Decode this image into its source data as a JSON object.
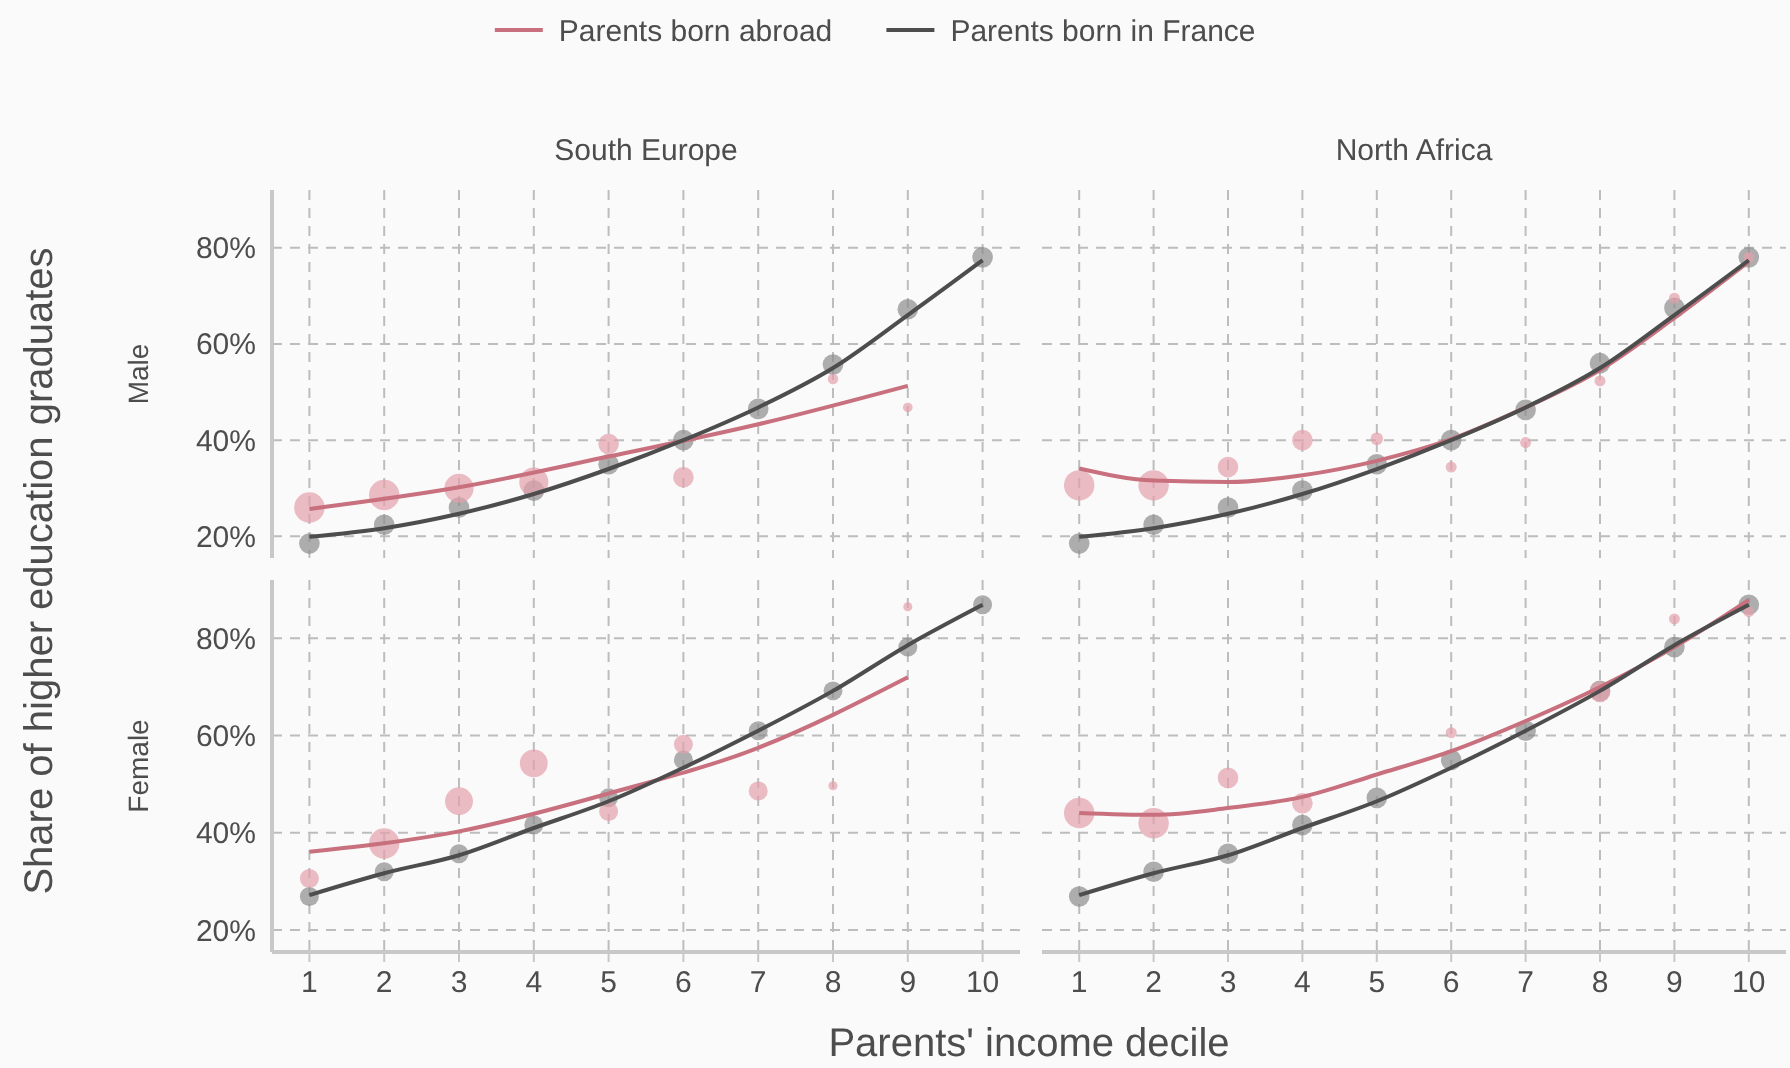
{
  "chart_data": [
    {
      "type": "bubble",
      "title": "South Europe",
      "ylabel": "Male",
      "annotations": [
        "Share of higher education graduates"
      ],
      "legend": "top",
      "grid": true,
      "tick_labels": "y",
      "xlim": [
        0.5,
        10.5
      ],
      "ylim": [
        15.5,
        92
      ],
      "xticks": [
        1,
        2,
        3,
        4,
        5,
        6,
        7,
        8,
        9,
        10
      ],
      "yticks": [
        {
          "value": 20,
          "label": "20%"
        },
        {
          "value": 40,
          "label": "40%"
        },
        {
          "value": 60,
          "label": "60%"
        },
        {
          "value": 80,
          "label": "80%"
        }
      ],
      "series": [
        {
          "marker": "circle",
          "color": "#8c8c8c",
          "x": [
            1,
            2,
            3,
            4,
            5,
            6,
            7,
            8,
            9,
            10
          ],
          "values": [
            18.5,
            22.4,
            26,
            29.5,
            35,
            40,
            46.5,
            55.7,
            67.2,
            78
          ],
          "sizes": [
            0.46,
            0.46,
            0.46,
            0.46,
            0.46,
            0.46,
            0.46,
            0.46,
            0.46,
            0.46
          ]
        },
        {
          "marker": "circle",
          "color": "#e3a0ab",
          "x": [
            1,
            2,
            3,
            4,
            5,
            6,
            8,
            9
          ],
          "values": [
            26,
            28.6,
            30,
            31.3,
            39.2,
            32.3,
            52.7,
            46.8
          ],
          "sizes": [
            1,
            1,
            0.92,
            0.92,
            0.46,
            0.46,
            0.12,
            0.1
          ]
        },
        {
          "type": "line",
          "marker": "none",
          "name": "Parents born abroad",
          "color": "#c8707e",
          "x": [
            1,
            3,
            5,
            7,
            9
          ],
          "values": [
            25.7,
            30.2,
            36.6,
            43.3,
            51.3
          ]
        },
        {
          "type": "line",
          "marker": "none",
          "name": "Parents born in France",
          "color": "#4d4d4d",
          "x": [
            1,
            2,
            3,
            4,
            5,
            6,
            7,
            8,
            9,
            10
          ],
          "values": [
            19.9,
            21.7,
            24.7,
            28.8,
            34,
            40,
            46.8,
            55,
            66,
            77.4
          ]
        }
      ]
    },
    {
      "type": "bubble",
      "title": "North Africa",
      "grid": true,
      "tick_labels": false,
      "xlim": [
        0.5,
        10.5
      ],
      "ylim": [
        15.5,
        92
      ],
      "xticks": [
        1,
        2,
        3,
        4,
        5,
        6,
        7,
        8,
        9,
        10
      ],
      "yticks": [
        {
          "value": 20,
          "label": null
        },
        {
          "value": 40,
          "label": null
        },
        {
          "value": 60,
          "label": null
        },
        {
          "value": 80,
          "label": null
        }
      ],
      "series": [
        {
          "marker": "circle",
          "color": "#8c8c8c",
          "x": [
            1,
            2,
            3,
            4,
            5,
            6,
            7,
            8,
            9,
            10
          ],
          "values": [
            18.5,
            22.4,
            26,
            29.5,
            35,
            40,
            46.3,
            56,
            67.5,
            78
          ],
          "sizes": [
            0.46,
            0.46,
            0.46,
            0.46,
            0.46,
            0.46,
            0.46,
            0.46,
            0.46,
            0.46
          ]
        },
        {
          "marker": "circle",
          "color": "#e3a0ab",
          "x": [
            1,
            2,
            3,
            4,
            5,
            6,
            7,
            8,
            9,
            10
          ],
          "values": [
            30.6,
            30.6,
            34.4,
            40,
            40.3,
            34.4,
            39.5,
            52.3,
            69.5,
            78
          ],
          "sizes": [
            1,
            1,
            0.46,
            0.46,
            0.17,
            0.13,
            0.13,
            0.13,
            0.13,
            0.13
          ]
        },
        {
          "type": "line",
          "marker": "none",
          "color": "#c8707e",
          "x": [
            1,
            2,
            3,
            4,
            5,
            6,
            7,
            8,
            9,
            10
          ],
          "values": [
            34.1,
            31.6,
            31.3,
            32.7,
            35.7,
            40.2,
            46.8,
            54.6,
            65.4,
            77.1
          ]
        },
        {
          "type": "line",
          "marker": "none",
          "color": "#4d4d4d",
          "x": [
            1,
            2,
            3,
            4,
            5,
            6,
            7,
            8,
            9,
            10
          ],
          "values": [
            19.9,
            21.7,
            24.7,
            28.8,
            34,
            40,
            46.8,
            55,
            66,
            77.4
          ]
        }
      ]
    },
    {
      "type": "bubble",
      "ylabel": "Female",
      "xlabel": "Parents' income decile",
      "grid": true,
      "xlim": [
        0.5,
        10.5
      ],
      "ylim": [
        15.5,
        92
      ],
      "xticks": [
        1,
        2,
        3,
        4,
        5,
        6,
        7,
        8,
        9,
        10
      ],
      "yticks": [
        {
          "value": 20,
          "label": "20%"
        },
        {
          "value": 40,
          "label": "40%"
        },
        {
          "value": 60,
          "label": "60%"
        },
        {
          "value": 80,
          "label": "80%"
        }
      ],
      "series": [
        {
          "marker": "circle",
          "color": "#8c8c8c",
          "x": [
            1,
            2,
            3,
            4,
            5,
            6,
            7,
            8,
            9,
            10
          ],
          "values": [
            26.9,
            32,
            35.7,
            41.6,
            47.2,
            55,
            61,
            69.2,
            78.2,
            86.9
          ],
          "sizes": [
            0.39,
            0.39,
            0.39,
            0.39,
            0.39,
            0.39,
            0.39,
            0.39,
            0.39,
            0.39
          ]
        },
        {
          "marker": "circle",
          "color": "#e3a0ab",
          "x": [
            1,
            2,
            3,
            4,
            5,
            6,
            7,
            8,
            9
          ],
          "values": [
            30.6,
            37.8,
            46.5,
            54.3,
            44.4,
            58.2,
            48.6,
            49.7,
            86.5
          ],
          "sizes": [
            0.39,
            1,
            0.84,
            0.84,
            0.39,
            0.39,
            0.39,
            0.09,
            0.09
          ]
        },
        {
          "type": "line",
          "marker": "none",
          "color": "#c8707e",
          "x": [
            1,
            3,
            5,
            7,
            9
          ],
          "values": [
            36.1,
            40.3,
            48.1,
            57.5,
            72
          ]
        },
        {
          "type": "line",
          "marker": "none",
          "color": "#4d4d4d",
          "x": [
            1,
            2,
            3,
            4,
            5,
            6,
            7,
            8,
            9,
            10
          ],
          "values": [
            27.2,
            31.7,
            35.4,
            41,
            46.5,
            53.4,
            61,
            69.2,
            78.6,
            86.9
          ]
        }
      ]
    },
    {
      "type": "bubble",
      "grid": true,
      "tick_labels": "x",
      "xlim": [
        0.5,
        10.5
      ],
      "ylim": [
        15.5,
        92
      ],
      "xticks": [
        1,
        2,
        3,
        4,
        5,
        6,
        7,
        8,
        9,
        10
      ],
      "yticks": [
        {
          "value": 20,
          "label": null
        },
        {
          "value": 40,
          "label": null
        },
        {
          "value": 60,
          "label": null
        },
        {
          "value": 80,
          "label": null
        }
      ],
      "series": [
        {
          "marker": "circle",
          "color": "#8c8c8c",
          "x": [
            1,
            2,
            3,
            4,
            5,
            6,
            7,
            8,
            9,
            10
          ],
          "values": [
            26.9,
            32,
            35.7,
            41.6,
            47.2,
            55,
            61,
            69.2,
            78.2,
            86.9
          ],
          "sizes": [
            0.46,
            0.46,
            0.46,
            0.46,
            0.46,
            0.46,
            0.46,
            0.46,
            0.46,
            0.46
          ]
        },
        {
          "marker": "circle",
          "color": "#e3a0ab",
          "x": [
            1,
            2,
            3,
            4,
            6,
            8,
            9,
            10
          ],
          "values": [
            44.1,
            42,
            51.3,
            46.1,
            60.6,
            69,
            84,
            85.5
          ],
          "sizes": [
            1,
            1,
            0.46,
            0.46,
            0.13,
            0.46,
            0.13,
            0.13
          ]
        },
        {
          "type": "line",
          "marker": "none",
          "color": "#c8707e",
          "x": [
            1,
            2,
            3,
            4,
            5,
            6,
            7,
            8,
            9,
            10
          ],
          "values": [
            44.1,
            43.7,
            45.1,
            47.4,
            52,
            56.8,
            63,
            70,
            78.2,
            87.9
          ]
        },
        {
          "type": "line",
          "marker": "none",
          "color": "#4d4d4d",
          "x": [
            1,
            2,
            3,
            4,
            5,
            6,
            7,
            8,
            9,
            10
          ],
          "values": [
            27.2,
            31.7,
            35.4,
            41,
            46.5,
            53.4,
            61,
            69.2,
            78.6,
            86.9
          ]
        }
      ]
    }
  ]
}
